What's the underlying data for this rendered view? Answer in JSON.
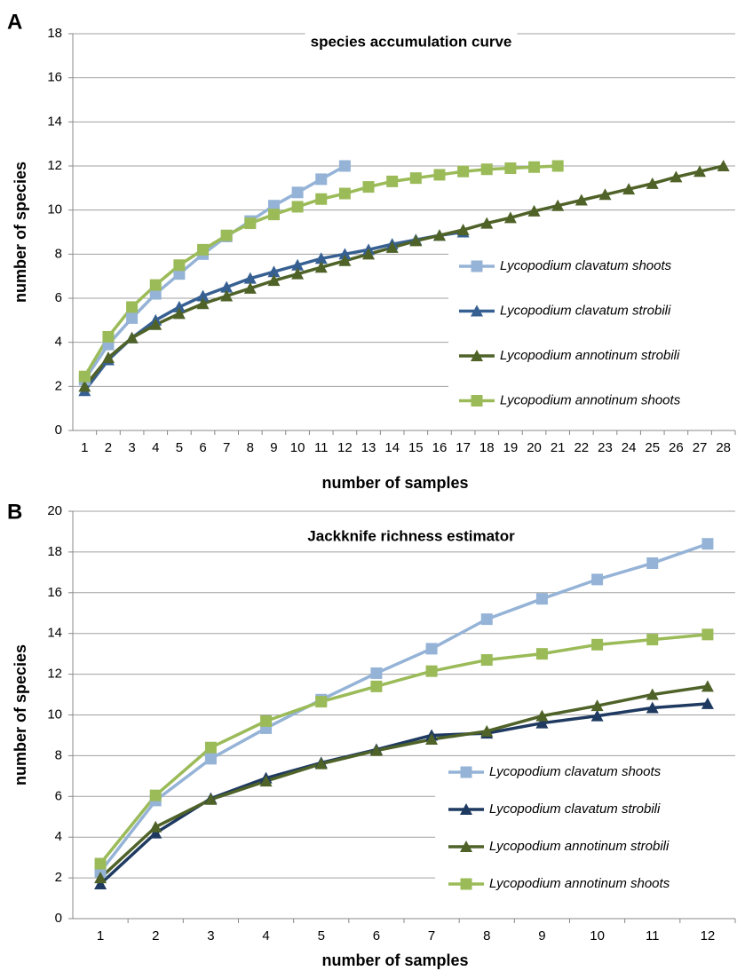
{
  "chart_data": [
    {
      "type": "line",
      "panel": "A",
      "title": "species accumulation curve",
      "x_label": "number of samples",
      "y_label": "number of species",
      "categories": [
        1,
        2,
        3,
        4,
        5,
        6,
        7,
        8,
        9,
        10,
        11,
        12,
        13,
        14,
        15,
        16,
        17,
        18,
        19,
        20,
        21,
        22,
        23,
        24,
        25,
        26,
        27,
        28
      ],
      "ylim": [
        0,
        18
      ],
      "yticks": [
        0,
        2,
        4,
        6,
        8,
        10,
        12,
        14,
        16,
        18
      ],
      "grid": true,
      "legend": "right",
      "series": [
        {
          "name": "Lycopodium clavatum shoots",
          "color": "#95b3d7",
          "marker": "square",
          "values": [
            2.3,
            3.9,
            5.1,
            6.2,
            7.1,
            8.0,
            8.8,
            9.5,
            10.2,
            10.8,
            11.4,
            12.0,
            null,
            null,
            null,
            null,
            null,
            null,
            null,
            null,
            null,
            null,
            null,
            null,
            null,
            null,
            null,
            null
          ]
        },
        {
          "name": "Lycopodium clavatum strobili",
          "color": "#376092",
          "marker": "triangle",
          "values": [
            1.8,
            3.2,
            4.2,
            5.0,
            5.6,
            6.1,
            6.5,
            6.9,
            7.2,
            7.5,
            7.8,
            8.0,
            8.2,
            8.45,
            8.65,
            8.85,
            9.0,
            null,
            null,
            null,
            null,
            null,
            null,
            null,
            null,
            null,
            null,
            null
          ]
        },
        {
          "name": "Lycopodium annotinum strobili",
          "color": "#4f6228",
          "marker": "triangle",
          "values": [
            2.0,
            3.3,
            4.2,
            4.8,
            5.3,
            5.75,
            6.1,
            6.45,
            6.8,
            7.1,
            7.4,
            7.7,
            8.0,
            8.3,
            8.6,
            8.85,
            9.1,
            9.4,
            9.65,
            9.95,
            10.2,
            10.45,
            10.7,
            10.95,
            11.2,
            11.5,
            11.75,
            12.0
          ]
        },
        {
          "name": "Lycopodium annotinum shoots",
          "color": "#9bbb59",
          "marker": "square",
          "values": [
            2.45,
            4.25,
            5.6,
            6.6,
            7.5,
            8.2,
            8.85,
            9.4,
            9.8,
            10.15,
            10.5,
            10.75,
            11.05,
            11.3,
            11.45,
            11.6,
            11.75,
            11.85,
            11.9,
            11.95,
            12.0,
            null,
            null,
            null,
            null,
            null,
            null,
            null
          ]
        }
      ]
    },
    {
      "type": "line",
      "panel": "B",
      "title": "Jackknife richness estimator",
      "x_label": "number of samples",
      "y_label": "number of species",
      "categories": [
        1,
        2,
        3,
        4,
        5,
        6,
        7,
        8,
        9,
        10,
        11,
        12
      ],
      "ylim": [
        0,
        20
      ],
      "yticks": [
        0,
        2,
        4,
        6,
        8,
        10,
        12,
        14,
        16,
        18,
        20
      ],
      "grid": true,
      "legend": "right",
      "series": [
        {
          "name": "Lycopodium clavatum shoots",
          "color": "#95b3d7",
          "marker": "square",
          "values": [
            2.3,
            5.8,
            7.85,
            9.35,
            10.75,
            12.05,
            13.25,
            14.7,
            15.7,
            16.65,
            17.45,
            18.4
          ]
        },
        {
          "name": "Lycopodium clavatum strobili",
          "color": "#1f3a60",
          "marker": "triangle",
          "values": [
            1.7,
            4.2,
            5.9,
            6.9,
            7.65,
            8.3,
            9.0,
            9.1,
            9.6,
            9.95,
            10.35,
            10.55
          ]
        },
        {
          "name": "Lycopodium annotinum strobili",
          "color": "#4f6228",
          "marker": "triangle",
          "values": [
            2.0,
            4.5,
            5.85,
            6.75,
            7.6,
            8.25,
            8.8,
            9.2,
            9.95,
            10.45,
            11.0,
            11.4
          ]
        },
        {
          "name": "Lycopodium annotinum shoots",
          "color": "#9bbb59",
          "marker": "square",
          "values": [
            2.7,
            6.05,
            8.4,
            9.7,
            10.65,
            11.4,
            12.15,
            12.7,
            13.0,
            13.45,
            13.7,
            13.95
          ]
        }
      ]
    }
  ]
}
